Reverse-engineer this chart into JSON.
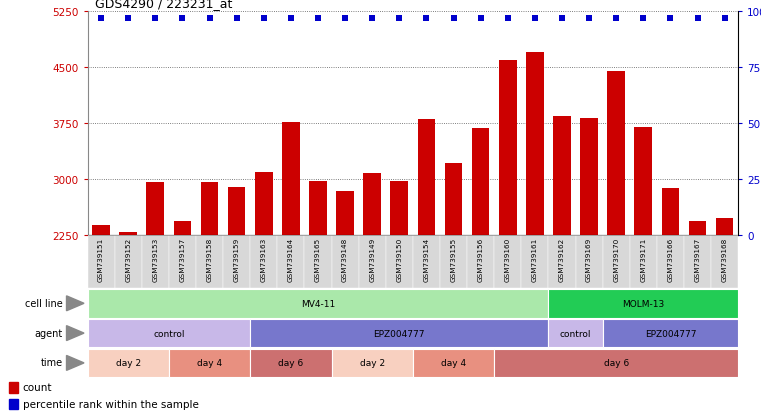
{
  "title": "GDS4290 / 223231_at",
  "samples": [
    "GSM739151",
    "GSM739152",
    "GSM739153",
    "GSM739157",
    "GSM739158",
    "GSM739159",
    "GSM739163",
    "GSM739164",
    "GSM739165",
    "GSM739148",
    "GSM739149",
    "GSM739150",
    "GSM739154",
    "GSM739155",
    "GSM739156",
    "GSM739160",
    "GSM739161",
    "GSM739162",
    "GSM739169",
    "GSM739170",
    "GSM739171",
    "GSM739166",
    "GSM739167",
    "GSM739168"
  ],
  "counts": [
    2380,
    2290,
    2960,
    2430,
    2950,
    2890,
    3090,
    3760,
    2970,
    2840,
    3080,
    2970,
    3810,
    3210,
    3680,
    4600,
    4700,
    3840,
    3820,
    4450,
    3700,
    2870,
    2430,
    2470
  ],
  "bar_color": "#cc0000",
  "dot_color": "#0000cc",
  "ylim_left": [
    2250,
    5250
  ],
  "yticks_left": [
    2250,
    3000,
    3750,
    4500,
    5250
  ],
  "ylim_right": [
    0,
    100
  ],
  "yticks_right": [
    0,
    25,
    50,
    75,
    100
  ],
  "cell_line_groups": [
    {
      "label": "MV4-11",
      "start": 0,
      "end": 17,
      "color": "#aae8aa"
    },
    {
      "label": "MOLM-13",
      "start": 17,
      "end": 24,
      "color": "#22cc55"
    }
  ],
  "agent_groups": [
    {
      "label": "control",
      "start": 0,
      "end": 6,
      "color": "#c8b8e8"
    },
    {
      "label": "EPZ004777",
      "start": 6,
      "end": 17,
      "color": "#7777cc"
    },
    {
      "label": "control",
      "start": 17,
      "end": 19,
      "color": "#c8b8e8"
    },
    {
      "label": "EPZ004777",
      "start": 19,
      "end": 24,
      "color": "#7777cc"
    }
  ],
  "time_groups": [
    {
      "label": "day 2",
      "start": 0,
      "end": 3,
      "color": "#f8d0c0"
    },
    {
      "label": "day 4",
      "start": 3,
      "end": 6,
      "color": "#e89080"
    },
    {
      "label": "day 6",
      "start": 6,
      "end": 9,
      "color": "#cc7070"
    },
    {
      "label": "day 2",
      "start": 9,
      "end": 12,
      "color": "#f8d0c0"
    },
    {
      "label": "day 4",
      "start": 12,
      "end": 15,
      "color": "#e89080"
    },
    {
      "label": "day 6",
      "start": 15,
      "end": 24,
      "color": "#cc7070"
    }
  ],
  "row_labels": [
    "cell line",
    "agent",
    "time"
  ],
  "background_color": "#ffffff",
  "grid_color": "#555555",
  "label_bg_color": "#e8e8e8",
  "tick_color_left": "#cc0000",
  "tick_color_right": "#0000cc",
  "xtick_bg_color": "#d8d8d8"
}
